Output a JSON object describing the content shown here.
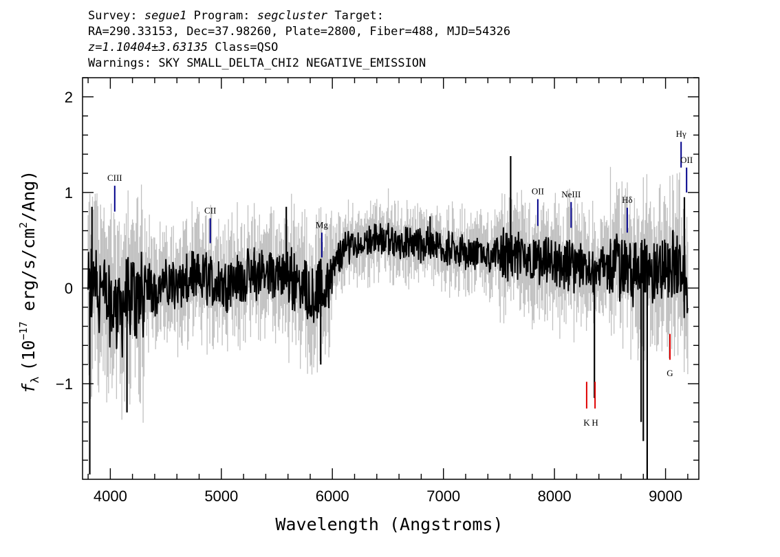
{
  "header": {
    "survey_key": "Survey:",
    "survey": "segue1",
    "program_key": "Program:",
    "program": "segcluster",
    "target_key": "Target:",
    "line2": "RA=290.33153, Dec=37.98260, Plate=2800, Fiber=488, MJD=54326",
    "redshift": "z=1.10404±3.63135",
    "class": "Class=QSO",
    "warnings": "Warnings: SKY SMALL_DELTA_CHI2 NEGATIVE_EMISSION"
  },
  "chart_data": {
    "type": "line",
    "xlabel": "Wavelength (Angstroms)",
    "ylabel_main": "(10",
    "ylabel_exp": "−17",
    "ylabel_units": " erg/s/cm",
    "ylabel_sq": "2",
    "ylabel_end": "/Ang)",
    "ylabel_sym": "f",
    "ylabel_sub": "λ",
    "xlim": [
      3750,
      9300
    ],
    "ylim": [
      -2.0,
      2.2
    ],
    "xticks": [
      4000,
      5000,
      6000,
      7000,
      8000,
      9000
    ],
    "xtick_labels": [
      "4000",
      "5000",
      "6000",
      "7000",
      "8000",
      "9000"
    ],
    "yticks": [
      -1,
      0,
      1,
      2
    ],
    "ytick_labels": [
      "−1",
      "0",
      "1",
      "2"
    ],
    "colors": {
      "flux": "#000000",
      "error_band": "#c0c0c0",
      "emission": "#00008b",
      "absorption": "#e00000"
    },
    "spectrum_anchors": [
      [
        3800,
        -0.1
      ],
      [
        3850,
        0.1
      ],
      [
        3900,
        0.0
      ],
      [
        4000,
        -0.15
      ],
      [
        4100,
        -0.25
      ],
      [
        4200,
        -0.1
      ],
      [
        4400,
        0.0
      ],
      [
        4600,
        0.05
      ],
      [
        4800,
        0.1
      ],
      [
        5000,
        0.05
      ],
      [
        5200,
        0.1
      ],
      [
        5400,
        0.15
      ],
      [
        5550,
        0.15
      ],
      [
        5700,
        0.05
      ],
      [
        5850,
        -0.05
      ],
      [
        5950,
        0.05
      ],
      [
        6050,
        0.3
      ],
      [
        6150,
        0.45
      ],
      [
        6300,
        0.5
      ],
      [
        6500,
        0.5
      ],
      [
        6700,
        0.45
      ],
      [
        6900,
        0.45
      ],
      [
        7100,
        0.4
      ],
      [
        7300,
        0.35
      ],
      [
        7500,
        0.35
      ],
      [
        7700,
        0.3
      ],
      [
        7900,
        0.25
      ],
      [
        8100,
        0.25
      ],
      [
        8300,
        0.2
      ],
      [
        8500,
        0.2
      ],
      [
        8700,
        0.2
      ],
      [
        8900,
        0.15
      ],
      [
        9100,
        0.25
      ],
      [
        9200,
        0.0
      ]
    ],
    "spikes": [
      {
        "x": 3815,
        "y": -1.95
      },
      {
        "x": 3835,
        "y": 0.85
      },
      {
        "x": 4150,
        "y": -1.3
      },
      {
        "x": 5585,
        "y": 0.85
      },
      {
        "x": 5895,
        "y": -0.8
      },
      {
        "x": 7605,
        "y": 1.38
      },
      {
        "x": 6880,
        "y": 0.75
      },
      {
        "x": 8360,
        "y": -1.15
      },
      {
        "x": 8780,
        "y": -1.4
      },
      {
        "x": 8800,
        "y": -1.6
      },
      {
        "x": 8835,
        "y": -2.0
      },
      {
        "x": 9170,
        "y": 0.95
      }
    ],
    "lines": [
      {
        "label": "CIII",
        "x": 4040,
        "y0": 0.8,
        "y1": 1.07,
        "kind": "emission",
        "label_y": 1.12
      },
      {
        "label": "CII",
        "x": 4900,
        "y0": 0.47,
        "y1": 0.73,
        "kind": "emission",
        "label_y": 0.78
      },
      {
        "label": "Mg",
        "x": 5905,
        "y0": 0.32,
        "y1": 0.58,
        "kind": "emission",
        "label_y": 0.63
      },
      {
        "label": "OII",
        "x": 7850,
        "y0": 0.65,
        "y1": 0.93,
        "kind": "emission",
        "label_y": 0.98
      },
      {
        "label": "NeIII",
        "x": 8150,
        "y0": 0.63,
        "y1": 0.9,
        "kind": "emission",
        "label_y": 0.95
      },
      {
        "label": "Hδ",
        "x": 8655,
        "y0": 0.58,
        "y1": 0.84,
        "kind": "emission",
        "label_y": 0.89
      },
      {
        "label": "Hγ",
        "x": 9140,
        "y0": 1.26,
        "y1": 1.53,
        "kind": "emission",
        "label_y": 1.58
      },
      {
        "label": "OII",
        "x": 9190,
        "y0": 1.0,
        "y1": 1.26,
        "kind": "emission",
        "label_y": 1.31
      },
      {
        "label": "K",
        "x": 8290,
        "y0": -1.26,
        "y1": -0.98,
        "kind": "absorption",
        "label_y": -1.44
      },
      {
        "label": "H",
        "x": 8365,
        "y0": -1.26,
        "y1": -0.98,
        "kind": "absorption",
        "label_y": -1.44
      },
      {
        "label": "G",
        "x": 9040,
        "y0": -0.75,
        "y1": -0.48,
        "kind": "absorption",
        "label_y": -0.92
      }
    ]
  }
}
